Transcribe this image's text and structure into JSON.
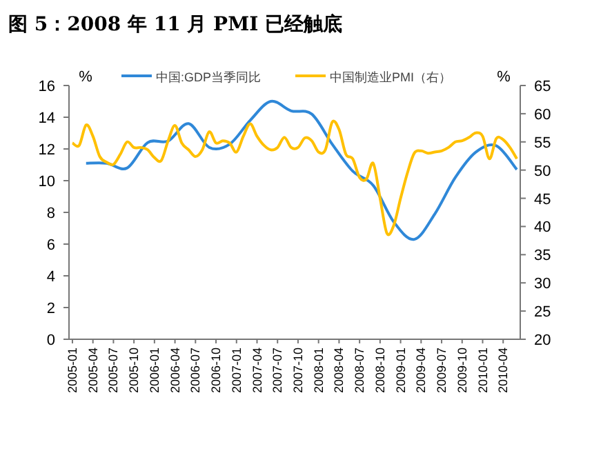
{
  "chart_data": {
    "type": "line",
    "title": "图 5：2008 年 11 月 PMI 已经触底",
    "ylabel": "%",
    "y2label": "%",
    "categories": [
      "2005-01",
      null,
      null,
      "2005-04",
      null,
      null,
      "2005-07",
      null,
      null,
      "2005-10",
      null,
      null,
      "2006-01",
      null,
      null,
      "2006-04",
      null,
      null,
      "2006-07",
      null,
      null,
      "2006-10",
      null,
      null,
      "2007-01",
      null,
      null,
      "2007-04",
      null,
      null,
      "2007-07",
      null,
      null,
      "2007-10",
      null,
      null,
      "2008-01",
      null,
      null,
      "2008-04",
      null,
      null,
      "2008-07",
      null,
      null,
      "2008-10",
      null,
      null,
      "2009-01",
      null,
      null,
      "2009-04",
      null,
      null,
      "2009-07",
      null,
      null,
      "2009-10",
      null,
      null,
      "2010-01",
      null,
      null,
      "2010-04",
      null,
      null
    ],
    "series": [
      {
        "name": "中国:GDP当季同比",
        "color": "#2f88d8",
        "values": [
          null,
          null,
          11.1,
          null,
          null,
          11.1,
          null,
          null,
          10.8,
          null,
          null,
          12.4,
          null,
          null,
          12.5,
          null,
          null,
          13.6,
          null,
          null,
          12.1,
          null,
          null,
          12.3,
          null,
          null,
          13.8,
          null,
          null,
          15.0,
          null,
          null,
          14.4,
          null,
          null,
          14.2,
          null,
          null,
          12.3,
          null,
          null,
          10.6,
          null,
          null,
          9.7,
          null,
          null,
          7.4,
          null,
          null,
          6.3,
          null,
          null,
          7.9,
          null,
          null,
          10.2,
          null,
          null,
          11.8,
          null,
          null,
          12.2,
          null,
          null,
          10.7
        ]
      },
      {
        "name": "中国制造业PMI（右）",
        "color": "#ffc000",
        "axis": "y2",
        "values": [
          54.8,
          54.4,
          58.0,
          56.0,
          52.4,
          51.4,
          51.0,
          52.8,
          55.0,
          54.0,
          54.0,
          53.6,
          52.2,
          51.7,
          55.2,
          57.9,
          54.8,
          53.6,
          52.4,
          53.6,
          56.8,
          54.8,
          55.2,
          54.8,
          53.2,
          56.0,
          58.2,
          56.0,
          54.4,
          53.6,
          54.0,
          55.8,
          54.0,
          54.0,
          55.7,
          55.2,
          53.2,
          53.6,
          58.5,
          57.2,
          52.8,
          52.0,
          48.7,
          48.4,
          51.2,
          45.0,
          38.8,
          40.2,
          45.0,
          49.5,
          53.0,
          53.4,
          53.0,
          53.2,
          53.4,
          54.0,
          55.0,
          55.2,
          55.8,
          56.6,
          56.0,
          52.0,
          55.6,
          55.4,
          54.0,
          52.0
        ]
      }
    ],
    "ylim": [
      0,
      16
    ],
    "yticks": [
      0,
      2,
      4,
      6,
      8,
      10,
      12,
      14,
      16
    ],
    "y2lim": [
      20,
      65
    ],
    "y2ticks": [
      20,
      25,
      30,
      35,
      40,
      45,
      50,
      55,
      60,
      65
    ],
    "legend": "top",
    "grid": false
  }
}
